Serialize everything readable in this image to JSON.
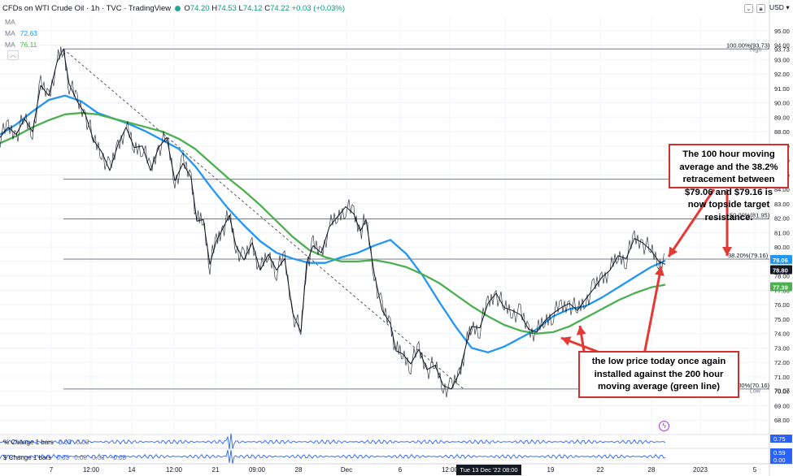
{
  "header": {
    "title": "CFDs on WTI Crude Oil · 1h · TVC · TradingView",
    "o_label": "O",
    "o": "74.20",
    "h_label": "H",
    "h": "74.53",
    "l_label": "L",
    "l": "74.12",
    "c_label": "C",
    "c": "74.22",
    "change": "+0.03 (+0.03%)"
  },
  "indicators": [
    {
      "label": "MA",
      "value": ""
    },
    {
      "label": "MA",
      "value": "72.63",
      "color": "#2196f3"
    },
    {
      "label": "MA",
      "value": "76.11",
      "color": "#4caf50"
    }
  ],
  "currency": "USD",
  "toolbar_icons": [
    "chevron-down-icon",
    "lock-icon",
    "caret-icon"
  ],
  "chart_data": {
    "type": "line",
    "symbol": "CFDs on WTI Crude Oil",
    "timeframe": "1h",
    "ylim": [
      67.0,
      96.0
    ],
    "y_ticks": [
      "95.00",
      "94.00",
      "93.00",
      "92.00",
      "91.00",
      "90.00",
      "89.00",
      "88.00",
      "87.00",
      "86.00",
      "85.00",
      "84.00",
      "83.00",
      "82.00",
      "81.00",
      "80.00",
      "79.00",
      "78.00",
      "77.00",
      "76.00",
      "75.00",
      "74.00",
      "73.00",
      "72.00",
      "71.00",
      "70.00",
      "69.00",
      "68.00"
    ],
    "x_ticks": [
      "7",
      "12:00",
      "14",
      "12:00",
      "21",
      "09:00",
      "28",
      "Dec",
      "6",
      "12:00",
      "15",
      "19",
      "22",
      "28",
      "2023",
      "5"
    ],
    "x_highlight": "Tue 13 Dec '22  08:00",
    "price_tags": [
      {
        "label": "High",
        "value": "93.73",
        "color": "#ffffff",
        "text": "#131722"
      },
      {
        "label": "",
        "value": "79.06",
        "color": "#2196f3",
        "text": "#ffffff"
      },
      {
        "label": "",
        "value": "78.80",
        "color": "#131722",
        "text": "#ffffff"
      },
      {
        "label": "",
        "value": "77.39",
        "color": "#4caf50",
        "text": "#ffffff"
      },
      {
        "label": "Low",
        "value": "70.07",
        "color": "#ffffff",
        "text": "#131722"
      }
    ],
    "fib_levels": [
      {
        "label": "100.00%(93.73)",
        "value": 93.73
      },
      {
        "label": "",
        "value": 84.7
      },
      {
        "label": "50.00%(81.95)",
        "value": 81.95
      },
      {
        "label": "38.20%(79.16)",
        "value": 79.16
      },
      {
        "label": "0.00%(70.16)",
        "value": 70.16
      }
    ],
    "series": [
      {
        "name": "MA",
        "color": "#2196f3",
        "x": [
          0,
          20,
          40,
          60,
          80,
          100,
          120,
          140,
          160,
          180,
          200,
          220,
          240,
          260,
          280,
          300,
          320,
          340,
          360,
          380,
          400,
          420,
          440,
          460,
          480,
          500,
          520,
          540,
          560,
          580,
          600,
          620,
          640,
          660,
          680,
          700,
          720,
          740,
          760,
          780,
          800,
          818
        ],
        "y": [
          87.8,
          88.5,
          89.4,
          90.2,
          90.5,
          90.1,
          89.3,
          88.9,
          88.5,
          88.0,
          87.4,
          86.8,
          85.6,
          84.1,
          82.7,
          81.5,
          80.4,
          79.6,
          79.2,
          78.9,
          78.9,
          79.3,
          79.6,
          80.1,
          80.5,
          79.5,
          78.0,
          76.2,
          74.5,
          73.0,
          72.7,
          73.1,
          73.7,
          74.3,
          75.2,
          75.7,
          75.9,
          76.5,
          77.2,
          77.9,
          78.6,
          79.06
        ]
      },
      {
        "name": "MA",
        "color": "#4caf50",
        "x": [
          0,
          20,
          40,
          60,
          80,
          100,
          120,
          140,
          160,
          180,
          200,
          220,
          240,
          260,
          280,
          300,
          320,
          340,
          360,
          380,
          400,
          420,
          440,
          460,
          480,
          500,
          520,
          540,
          560,
          580,
          600,
          620,
          640,
          660,
          680,
          700,
          720,
          740,
          760,
          780,
          800,
          818
        ],
        "y": [
          87.2,
          87.7,
          88.3,
          88.8,
          89.2,
          89.3,
          89.2,
          88.9,
          88.6,
          88.3,
          88.0,
          87.5,
          86.8,
          85.8,
          84.8,
          83.9,
          82.9,
          81.8,
          80.7,
          79.8,
          79.3,
          79.0,
          79.0,
          79.1,
          78.9,
          78.6,
          78.1,
          77.5,
          76.7,
          75.9,
          75.2,
          74.6,
          74.2,
          74.0,
          74.1,
          74.5,
          75.1,
          75.7,
          76.3,
          76.8,
          77.2,
          77.39
        ]
      },
      {
        "name": "price",
        "color": "#131722",
        "x": [
          0,
          10,
          20,
          30,
          40,
          50,
          60,
          70,
          78,
          85,
          95,
          105,
          115,
          125,
          135,
          145,
          155,
          165,
          175,
          185,
          195,
          205,
          215,
          225,
          235,
          242,
          250,
          258,
          266,
          274,
          282,
          290,
          300,
          310,
          320,
          330,
          340,
          350,
          360,
          370,
          377,
          385,
          395,
          405,
          415,
          425,
          435,
          443,
          450,
          460,
          470,
          480,
          487,
          495,
          505,
          515,
          525,
          535,
          545,
          555,
          565,
          573,
          580,
          590,
          600,
          610,
          620,
          630,
          640,
          650,
          660,
          670,
          680,
          690,
          700,
          710,
          720,
          730,
          740,
          750,
          760,
          770,
          780,
          790,
          800,
          810,
          818
        ],
        "y": [
          87.6,
          88.3,
          87.8,
          88.9,
          88.0,
          91.2,
          90.5,
          92.8,
          93.73,
          91.3,
          90.1,
          89.2,
          87.4,
          86.6,
          85.3,
          87.1,
          88.3,
          86.9,
          87.0,
          85.3,
          86.9,
          87.6,
          84.6,
          85.8,
          84.8,
          81.8,
          81.9,
          78.8,
          80.4,
          81.3,
          82.2,
          80.1,
          79.1,
          80.3,
          78.4,
          79.5,
          78.4,
          79.2,
          75.4,
          74.1,
          78.9,
          80.1,
          79.6,
          81.4,
          82.1,
          82.8,
          82.3,
          81.1,
          81.9,
          78.2,
          75.6,
          74.7,
          72.8,
          72.6,
          71.9,
          72.9,
          71.5,
          71.8,
          70.4,
          70.16,
          71.3,
          73.2,
          74.5,
          74.4,
          76.1,
          76.8,
          75.8,
          75.6,
          75.3,
          74.3,
          74.1,
          74.9,
          75.4,
          75.8,
          76.1,
          75.6,
          76.4,
          77.1,
          77.9,
          78.4,
          79.4,
          79.2,
          80.6,
          80.3,
          79.8,
          79.0,
          78.8
        ]
      }
    ]
  },
  "lower_panes": [
    {
      "label": "% Change 1 bars",
      "v1": "0.03",
      "v2": "0.00",
      "tag": "0.75"
    },
    {
      "label": "$ Change 1 bars",
      "v1": "0.03",
      "v2": "0.00",
      "v3": "0.33",
      "v4": "−0.08",
      "tag": "0.59",
      "tag2": "0.00"
    }
  ],
  "annotations": {
    "top_callout": "The 100 hour moving average and the 38.2% retracement between $79.06 and $79.16 is now topside target resistance.",
    "bottom_callout": "the low price today once again installed against the 200 hour moving average (green line)"
  },
  "colors": {
    "ma_blue": "#2196f3",
    "ma_green": "#4caf50",
    "arrow_red": "#e53935",
    "pane_line": "#2962ff"
  }
}
